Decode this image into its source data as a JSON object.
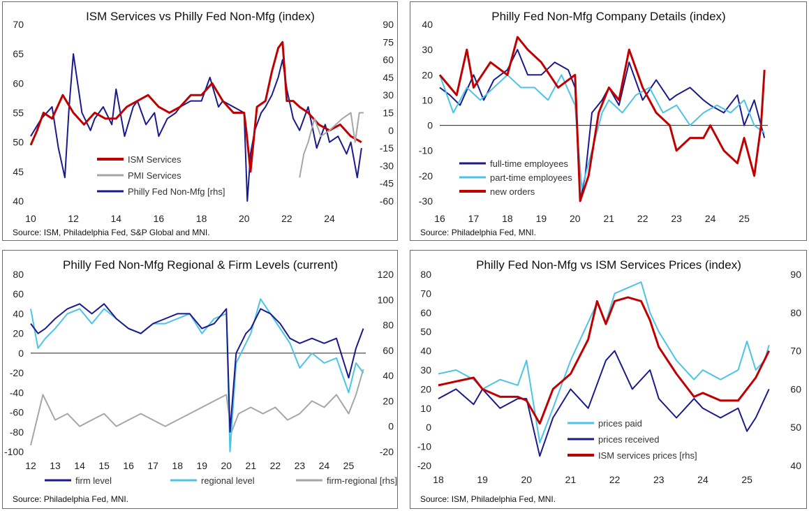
{
  "colors": {
    "red": "#c00000",
    "grey": "#a6a6a6",
    "navy": "#1a1a8c",
    "cyan": "#4dc3e6"
  },
  "charts": [
    {
      "title": "ISM Services vs Philly Fed Non-Mfg (index)",
      "source": "Source: ISM, Philadelphia Fed, S&P Global and MNI.",
      "x_ticks": [
        "10",
        "12",
        "14",
        "16",
        "18",
        "20",
        "22",
        "24"
      ],
      "y_ticks": [
        "70",
        "65",
        "60",
        "55",
        "50",
        "45",
        "40"
      ],
      "y2_ticks": [
        "90",
        "75",
        "60",
        "45",
        "30",
        "15",
        "0",
        "-15",
        "-30",
        "-45",
        "-60"
      ],
      "legend": [
        "ISM Services",
        "PMI Services",
        "Philly Fed Non-Mfg [rhs]"
      ]
    },
    {
      "title": "Philly Fed Non-Mfg Company Details (index)",
      "source": "Source: Philadelphia Fed, MNI.",
      "x_ticks": [
        "16",
        "17",
        "18",
        "19",
        "20",
        "21",
        "22",
        "23",
        "24",
        "25"
      ],
      "y_ticks": [
        "40",
        "30",
        "20",
        "10",
        "0",
        "-10",
        "-20",
        "-30"
      ],
      "legend": [
        "full-time employees",
        "part-time employees",
        "new orders"
      ]
    },
    {
      "title": "Philly Fed Non-Mfg Regional & Firm Levels (current)",
      "source": "Source: Philadelphia Fed, MNI.",
      "x_ticks": [
        "12",
        "13",
        "14",
        "15",
        "16",
        "17",
        "18",
        "19",
        "20",
        "21",
        "22",
        "23",
        "24",
        "25"
      ],
      "y_ticks": [
        "80",
        "60",
        "40",
        "20",
        "0",
        "-20",
        "-40",
        "-60",
        "-80",
        "-100"
      ],
      "y2_ticks": [
        "120",
        "100",
        "80",
        "60",
        "40",
        "20",
        "0",
        "-20"
      ],
      "legend": [
        "firm level",
        "regional level",
        "firm-regional [rhs]"
      ]
    },
    {
      "title": "Philly Fed Non-Mfg vs ISM Services Prices (index)",
      "source": "Source: ISM, Philadelphia Fed, MNI.",
      "x_ticks": [
        "18",
        "19",
        "20",
        "21",
        "22",
        "23",
        "24",
        "25"
      ],
      "y_ticks": [
        "80",
        "70",
        "60",
        "50",
        "40",
        "30",
        "20",
        "10",
        "0",
        "-10",
        "-20"
      ],
      "y2_ticks": [
        "90",
        "80",
        "70",
        "60",
        "50",
        "40"
      ],
      "legend": [
        "prices paid",
        "prices received",
        "ISM services prices [rhs]"
      ]
    }
  ],
  "chart_data": [
    {
      "type": "line",
      "title": "ISM Services vs Philly Fed Non-Mfg (index)",
      "x_range": [
        2010,
        2025.7
      ],
      "ylim": [
        40,
        70
      ],
      "y2lim": [
        -60,
        90
      ],
      "series": [
        {
          "name": "Philly Fed Non-Mfg [rhs]",
          "axis": "right",
          "color": "navy",
          "x": [
            2010,
            2010.5,
            2011,
            2011.3,
            2011.6,
            2011.8,
            2012,
            2012.4,
            2012.8,
            2013,
            2013.4,
            2013.8,
            2014,
            2014.4,
            2014.8,
            2015,
            2015.4,
            2015.8,
            2016,
            2016.4,
            2016.8,
            2017,
            2017.5,
            2018,
            2018.4,
            2018.8,
            2019,
            2019.5,
            2020,
            2020.15,
            2020.3,
            2020.5,
            2020.8,
            2021,
            2021.3,
            2021.6,
            2021.8,
            2022,
            2022.3,
            2022.6,
            2023,
            2023.4,
            2023.8,
            2024,
            2024.4,
            2024.8,
            2025,
            2025.3,
            2025.5
          ],
          "y": [
            -5,
            10,
            20,
            -15,
            -40,
            20,
            65,
            15,
            0,
            10,
            20,
            5,
            35,
            -5,
            20,
            25,
            5,
            15,
            -5,
            10,
            15,
            20,
            25,
            25,
            45,
            20,
            25,
            20,
            15,
            -60,
            -20,
            0,
            15,
            20,
            30,
            45,
            60,
            35,
            10,
            0,
            20,
            -15,
            5,
            -10,
            -5,
            -20,
            -10,
            -40,
            -15
          ]
        },
        {
          "name": "ISM Services",
          "axis": "left",
          "color": "red",
          "x": [
            2010,
            2010.3,
            2010.6,
            2011,
            2011.5,
            2012,
            2012.5,
            2013,
            2013.5,
            2014,
            2014.5,
            2015,
            2015.5,
            2016,
            2016.5,
            2017,
            2017.5,
            2018,
            2018.5,
            2019,
            2019.5,
            2020,
            2020.1,
            2020.3,
            2020.6,
            2021,
            2021.3,
            2021.6,
            2021.8,
            2022,
            2022.3,
            2022.6,
            2023,
            2023.5,
            2024,
            2024.5,
            2025,
            2025.5
          ],
          "y": [
            49.5,
            52,
            55,
            54,
            58,
            55,
            53,
            55,
            54,
            54,
            56,
            57,
            58,
            56,
            55,
            56,
            58,
            58,
            60,
            57,
            55,
            55,
            52,
            45,
            56,
            57,
            62,
            66,
            67,
            57,
            57,
            56,
            55,
            53,
            52,
            53,
            51,
            50
          ]
        },
        {
          "name": "PMI Services",
          "axis": "left",
          "color": "grey",
          "x": [
            2022.6,
            2022.8,
            2023,
            2023.3,
            2023.6,
            2024,
            2024.3,
            2024.6,
            2025,
            2025.2,
            2025.4,
            2025.6
          ],
          "y": [
            44,
            48,
            50,
            54,
            51,
            52,
            53,
            54,
            55,
            50,
            55,
            55
          ]
        }
      ]
    },
    {
      "type": "line",
      "title": "Philly Fed Non-Mfg Company Details (index)",
      "x_range": [
        2016,
        2025.7
      ],
      "ylim": [
        -30,
        40
      ],
      "series": [
        {
          "name": "full-time employees",
          "color": "navy",
          "x": [
            2016,
            2016.3,
            2016.6,
            2017,
            2017.3,
            2017.6,
            2018,
            2018.3,
            2018.6,
            2019,
            2019.4,
            2019.8,
            2020,
            2020.15,
            2020.3,
            2020.5,
            2020.8,
            2021,
            2021.3,
            2021.6,
            2022,
            2022.4,
            2022.8,
            2023,
            2023.4,
            2023.8,
            2024,
            2024.4,
            2024.8,
            2025,
            2025.3,
            2025.6
          ],
          "y": [
            15,
            12,
            8,
            20,
            10,
            18,
            22,
            30,
            20,
            20,
            25,
            22,
            15,
            -30,
            -20,
            5,
            10,
            15,
            8,
            25,
            10,
            18,
            10,
            12,
            15,
            10,
            8,
            5,
            12,
            0,
            10,
            -5
          ]
        },
        {
          "name": "part-time employees",
          "color": "cyan",
          "x": [
            2016,
            2016.4,
            2016.8,
            2017.2,
            2017.6,
            2018,
            2018.4,
            2018.8,
            2019.2,
            2019.6,
            2020,
            2020.2,
            2020.5,
            2020.8,
            2021,
            2021.4,
            2021.8,
            2022.2,
            2022.6,
            2023,
            2023.4,
            2023.8,
            2024.2,
            2024.6,
            2025,
            2025.3,
            2025.6
          ],
          "y": [
            20,
            5,
            15,
            10,
            15,
            20,
            15,
            15,
            10,
            20,
            8,
            -25,
            -10,
            5,
            10,
            5,
            12,
            15,
            5,
            8,
            0,
            5,
            8,
            5,
            10,
            0,
            -3
          ]
        },
        {
          "name": "new orders",
          "color": "red",
          "x": [
            2016,
            2016.5,
            2016.8,
            2017,
            2017.5,
            2018,
            2018.3,
            2018.6,
            2019,
            2019.5,
            2020,
            2020.15,
            2020.4,
            2020.7,
            2021,
            2021.3,
            2021.6,
            2022,
            2022.4,
            2022.8,
            2023,
            2023.4,
            2023.8,
            2024,
            2024.4,
            2024.8,
            2025,
            2025.3,
            2025.5,
            2025.6
          ],
          "y": [
            20,
            12,
            30,
            15,
            25,
            20,
            35,
            30,
            25,
            15,
            20,
            -30,
            -20,
            5,
            15,
            10,
            30,
            15,
            5,
            0,
            -10,
            -5,
            -5,
            0,
            -10,
            -15,
            -5,
            -20,
            0,
            22
          ]
        }
      ]
    },
    {
      "type": "line",
      "title": "Philly Fed Non-Mfg Regional & Firm Levels (current)",
      "x_range": [
        2012,
        2025.7
      ],
      "ylim": [
        -100,
        80
      ],
      "y2lim": [
        -20,
        120
      ],
      "series": [
        {
          "name": "firm-regional [rhs]",
          "axis": "right",
          "color": "grey",
          "x": [
            2012,
            2012.5,
            2013,
            2013.5,
            2014,
            2014.5,
            2015,
            2015.5,
            2016,
            2016.5,
            2017,
            2017.5,
            2018,
            2018.5,
            2019,
            2019.5,
            2020,
            2020.2,
            2020.5,
            2021,
            2021.5,
            2022,
            2022.5,
            2023,
            2023.5,
            2024,
            2024.5,
            2025,
            2025.3,
            2025.6
          ],
          "y": [
            -15,
            25,
            5,
            10,
            0,
            5,
            10,
            0,
            5,
            10,
            5,
            0,
            5,
            10,
            15,
            20,
            25,
            -5,
            10,
            15,
            10,
            15,
            5,
            10,
            20,
            15,
            25,
            10,
            25,
            45
          ]
        },
        {
          "name": "regional level",
          "color": "cyan",
          "x": [
            2012,
            2012.3,
            2012.6,
            2013,
            2013.5,
            2014,
            2014.5,
            2015,
            2015.5,
            2016,
            2016.5,
            2017,
            2017.5,
            2018,
            2018.5,
            2019,
            2019.5,
            2020,
            2020.15,
            2020.4,
            2020.8,
            2021,
            2021.4,
            2021.8,
            2022.2,
            2022.6,
            2023,
            2023.5,
            2024,
            2024.5,
            2025,
            2025.3,
            2025.6
          ],
          "y": [
            45,
            5,
            15,
            25,
            40,
            45,
            30,
            45,
            35,
            25,
            20,
            30,
            30,
            35,
            40,
            20,
            35,
            40,
            -100,
            -10,
            10,
            20,
            55,
            40,
            25,
            10,
            -15,
            0,
            -10,
            -5,
            -40,
            -10,
            -20
          ]
        },
        {
          "name": "firm level",
          "color": "navy",
          "x": [
            2012,
            2012.3,
            2012.6,
            2013,
            2013.5,
            2014,
            2014.5,
            2015,
            2015.5,
            2016,
            2016.5,
            2017,
            2017.5,
            2018,
            2018.5,
            2019,
            2019.5,
            2020,
            2020.15,
            2020.4,
            2020.8,
            2021,
            2021.4,
            2021.8,
            2022.2,
            2022.6,
            2023,
            2023.5,
            2024,
            2024.5,
            2025,
            2025.3,
            2025.6
          ],
          "y": [
            30,
            20,
            25,
            35,
            45,
            50,
            40,
            50,
            35,
            25,
            20,
            30,
            35,
            40,
            40,
            25,
            30,
            45,
            -80,
            0,
            20,
            25,
            45,
            40,
            30,
            15,
            10,
            15,
            10,
            15,
            -25,
            5,
            25
          ]
        }
      ]
    },
    {
      "type": "line",
      "title": "Philly Fed Non-Mfg vs ISM Services Prices (index)",
      "x_range": [
        2018,
        2025.6
      ],
      "ylim": [
        -20,
        80
      ],
      "y2lim": [
        40,
        90
      ],
      "series": [
        {
          "name": "prices paid",
          "color": "cyan",
          "x": [
            2018,
            2018.4,
            2018.8,
            2019,
            2019.4,
            2019.8,
            2020,
            2020.3,
            2020.6,
            2021,
            2021.3,
            2021.6,
            2021.8,
            2022,
            2022.3,
            2022.6,
            2022.8,
            2023,
            2023.4,
            2023.8,
            2024,
            2024.4,
            2024.8,
            2025,
            2025.2,
            2025.4,
            2025.5
          ],
          "y": [
            28,
            30,
            25,
            20,
            25,
            22,
            35,
            -8,
            10,
            35,
            50,
            65,
            55,
            70,
            73,
            76,
            60,
            50,
            35,
            25,
            30,
            25,
            30,
            45,
            30,
            35,
            43
          ]
        },
        {
          "name": "prices received",
          "color": "navy",
          "x": [
            2018,
            2018.4,
            2018.8,
            2019,
            2019.4,
            2019.8,
            2020,
            2020.3,
            2020.6,
            2021,
            2021.4,
            2021.8,
            2022,
            2022.4,
            2022.8,
            2023,
            2023.4,
            2023.8,
            2024,
            2024.4,
            2024.8,
            2025,
            2025.2,
            2025.5
          ],
          "y": [
            15,
            20,
            12,
            20,
            10,
            15,
            15,
            -15,
            5,
            20,
            10,
            35,
            40,
            20,
            30,
            15,
            5,
            15,
            10,
            5,
            10,
            -2,
            5,
            20
          ]
        },
        {
          "name": "ISM services prices [rhs]",
          "axis": "right",
          "color": "red",
          "x": [
            2018,
            2018.4,
            2018.8,
            2019,
            2019.4,
            2019.8,
            2020,
            2020.3,
            2020.6,
            2021,
            2021.4,
            2021.6,
            2021.8,
            2022,
            2022.3,
            2022.6,
            2022.8,
            2023,
            2023.4,
            2023.8,
            2024,
            2024.4,
            2024.8,
            2025,
            2025.2,
            2025.5
          ],
          "y": [
            61,
            62,
            63,
            60,
            58,
            58,
            57,
            51,
            60,
            64,
            73,
            83,
            77,
            83,
            84,
            83,
            78,
            71,
            64,
            58,
            59,
            57,
            57,
            60,
            63,
            70
          ]
        }
      ]
    }
  ]
}
